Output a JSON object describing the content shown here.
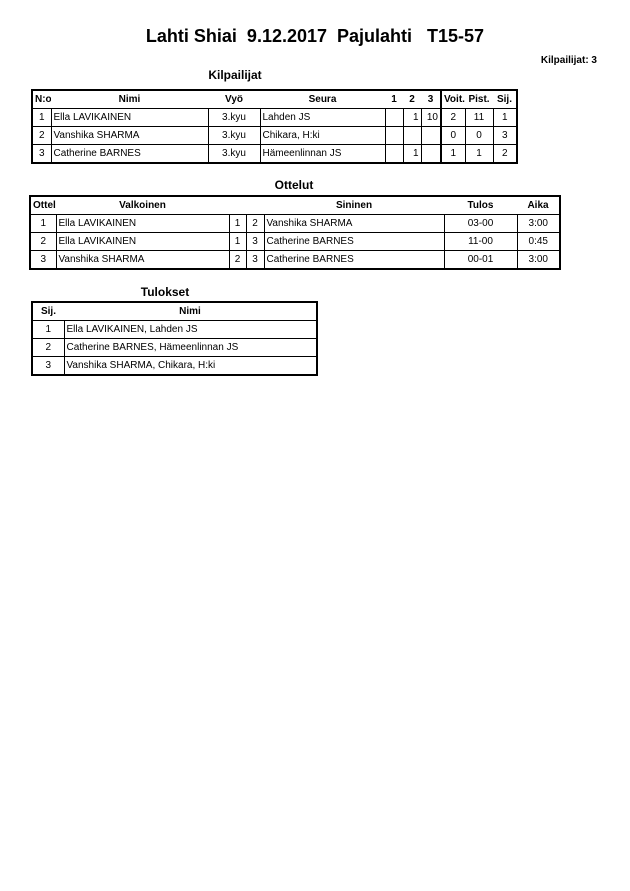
{
  "title": "Lahti Shiai  9.12.2017  Pajulahti   T15-57",
  "competitor_count": "Kilpailijat: 3",
  "competitors": {
    "heading": "Kilpailijat",
    "columns": [
      "N:o",
      "Nimi",
      "Vyö",
      "Seura",
      "1",
      "2",
      "3",
      "Voit.",
      "Pist.",
      "Sij."
    ],
    "rows": [
      [
        "1",
        "Ella LAVIKAINEN",
        "3.kyu",
        "Lahden JS",
        "",
        "1",
        "10",
        "2",
        "11",
        "1"
      ],
      [
        "2",
        "Vanshika SHARMA",
        "3.kyu",
        "Chikara, H:ki",
        "",
        "",
        "",
        "0",
        "0",
        "3"
      ],
      [
        "3",
        "Catherine BARNES",
        "3.kyu",
        "Hämeenlinnan JS",
        "",
        "1",
        "",
        "1",
        "1",
        "2"
      ]
    ]
  },
  "matches": {
    "heading": "Ottelut",
    "columns": [
      "Ottelu",
      "Valkoinen",
      "",
      "",
      "Sininen",
      "Tulos",
      "Aika"
    ],
    "rows": [
      [
        "1",
        "Ella LAVIKAINEN",
        "1",
        "2",
        "Vanshika SHARMA",
        "03-00",
        "3:00"
      ],
      [
        "2",
        "Ella LAVIKAINEN",
        "1",
        "3",
        "Catherine BARNES",
        "11-00",
        "0:45"
      ],
      [
        "3",
        "Vanshika SHARMA",
        "2",
        "3",
        "Catherine BARNES",
        "00-01",
        "3:00"
      ]
    ]
  },
  "results": {
    "heading": "Tulokset",
    "columns": [
      "Sij.",
      "Nimi"
    ],
    "rows": [
      [
        "1",
        "Ella LAVIKAINEN, Lahden JS"
      ],
      [
        "2",
        "Catherine BARNES, Hämeenlinnan JS"
      ],
      [
        "3",
        "Vanshika SHARMA, Chikara, H:ki"
      ]
    ]
  }
}
